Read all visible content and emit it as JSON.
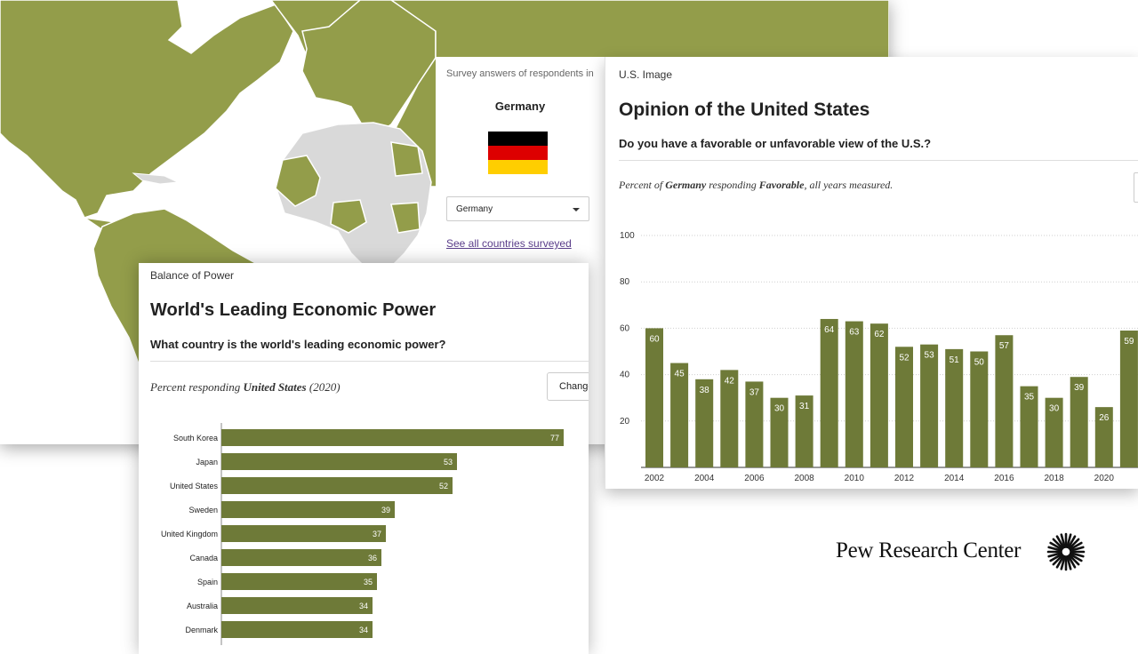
{
  "colors": {
    "accent": "#6e7a38",
    "map_land_surveyed": "#939d4a",
    "map_land_other": "#d9d9d9",
    "map_ocean": "#ffffff",
    "link": "#5a3d8a"
  },
  "selector": {
    "caption": "Survey answers of respondents in",
    "country_name": "Germany",
    "dropdown_value": "Germany",
    "see_all_link": "See all countries surveyed"
  },
  "us_image": {
    "section": "U.S. Image",
    "title": "Opinion of the United States",
    "question": "Do you have a favorable or unfavorable view of the U.S.?",
    "subtitle_prefix": "Percent of ",
    "subtitle_country": "Germany",
    "subtitle_mid": " responding ",
    "subtitle_answer": "Favorable",
    "subtitle_suffix": ", all years measured."
  },
  "balance_of_power": {
    "section": "Balance of Power",
    "title": "World's Leading Economic Power",
    "question": "What country is the world's leading economic power?",
    "subtitle_prefix": "Percent responding ",
    "subtitle_country": "United States",
    "subtitle_suffix": " (2020)",
    "change_label": "Change"
  },
  "logo": {
    "text": "Pew Research Center",
    "emblem_icon": "pew-sunburst-icon"
  },
  "chart_data": [
    {
      "type": "bar",
      "title": "Opinion of the United States",
      "categories": [
        "2002",
        "2003",
        "2004",
        "2005",
        "2006",
        "2007",
        "2008",
        "2009",
        "2010",
        "2011",
        "2012",
        "2013",
        "2014",
        "2015",
        "2016",
        "2017",
        "2018",
        "2019",
        "2020",
        "2021"
      ],
      "x_tick_labels": [
        "2002",
        "2004",
        "2006",
        "2008",
        "2010",
        "2012",
        "2014",
        "2016",
        "2018",
        "2020"
      ],
      "values": [
        60,
        45,
        38,
        42,
        37,
        30,
        31,
        64,
        63,
        62,
        52,
        53,
        51,
        50,
        57,
        35,
        30,
        39,
        26,
        59
      ],
      "ylim": [
        0,
        100
      ],
      "y_ticks": [
        20,
        40,
        60,
        80,
        100
      ],
      "grid": true,
      "xlabel": "",
      "ylabel": ""
    },
    {
      "type": "bar",
      "orientation": "horizontal",
      "title": "World's Leading Economic Power",
      "categories": [
        "South Korea",
        "Japan",
        "United States",
        "Sweden",
        "United Kingdom",
        "Canada",
        "Spain",
        "Australia",
        "Denmark"
      ],
      "values": [
        77,
        53,
        52,
        39,
        37,
        36,
        35,
        34,
        34
      ],
      "xlim": [
        0,
        80
      ],
      "xlabel": "",
      "ylabel": ""
    }
  ]
}
